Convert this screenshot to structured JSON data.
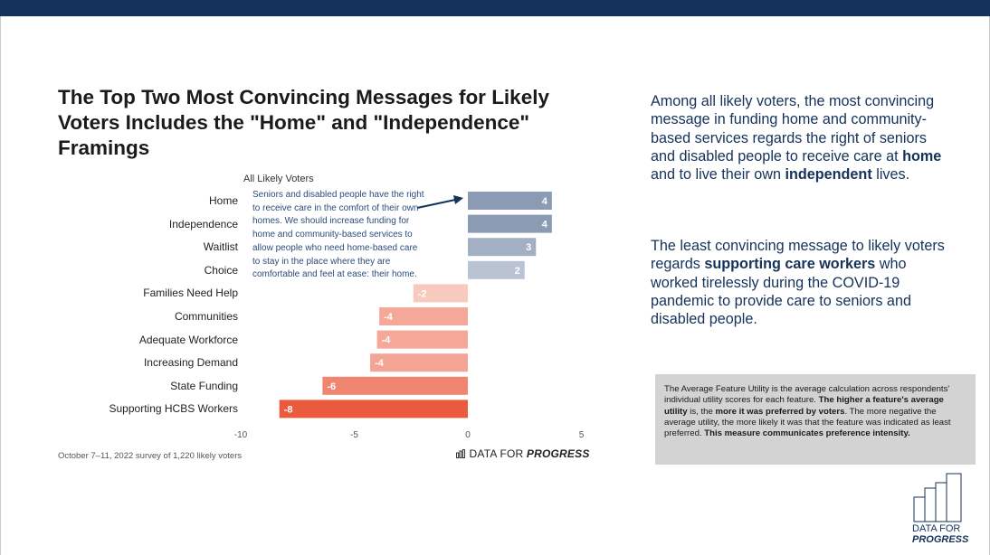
{
  "title": "The Top Two Most Convincing Messages for Likely Voters Includes the \"Home\" and \"Independence\" Framings",
  "chart_data": {
    "type": "bar",
    "orientation": "horizontal",
    "subtitle": "All Likely Voters",
    "categories": [
      "Home",
      "Independence",
      "Waitlist",
      "Choice",
      "Families Need Help",
      "Communities",
      "Adequate Workforce",
      "Increasing Demand",
      "State Funding",
      "Supporting HCBS Workers"
    ],
    "values": [
      3.7,
      3.7,
      3,
      2.5,
      -2.4,
      -3.9,
      -4,
      -4.3,
      -6.4,
      -8.3
    ],
    "data_labels": [
      "4",
      "4",
      "3",
      "2",
      "-2",
      "-4",
      "-4",
      "-4",
      "-6",
      "-8"
    ],
    "xlim": [
      -10,
      5
    ],
    "xticks": [
      "-10",
      "-5",
      "0",
      "5"
    ],
    "colors": [
      "#8c9bb4",
      "#8c9bb4",
      "#a3afc3",
      "#b9c3d3",
      "#f8c9bd",
      "#f5a898",
      "#f5a898",
      "#f4a494",
      "#f08670",
      "#ec5a3d"
    ],
    "annotation": "Seniors and disabled people have the right to receive care in the comfort of their own homes. We should increase funding for home and community-based services to allow people who need home-based care to stay in the place where they are comfortable and feel at ease: their home.",
    "annotation_color": "#14325a"
  },
  "source": "October 7–11, 2022 survey of 1,220 likely voters",
  "logo_small": {
    "part1": "DATA FOR ",
    "part2": "PROGRESS"
  },
  "para1": {
    "a": "Among all likely voters, the most convincing message in funding home and community-based services regards the right of seniors and disabled people to receive care at ",
    "b": "home",
    "c": " and to live their own ",
    "d": "independent",
    "e": " lives."
  },
  "para2": {
    "a": "The least convincing message to likely voters regards ",
    "b": "supporting care workers",
    "c": " who worked tirelessly during the COVID-19 pandemic to provide care to seniors and disabled people."
  },
  "box": {
    "a": "The Average Feature Utility is the average calculation across respondents' individual utility scores for each feature. ",
    "b": "The higher a feature's average utility",
    "c": " is, the ",
    "d": "more it was preferred by voters",
    "e": ". The more negative the average utility, the more likely it was that the feature was indicated as least preferred. ",
    "f": "This measure communicates preference intensity."
  },
  "big_logo": {
    "line1": "DATA FOR",
    "line2": "PROGRESS"
  },
  "colors": {
    "topbar": "#14325a",
    "accent": "#14325a"
  }
}
